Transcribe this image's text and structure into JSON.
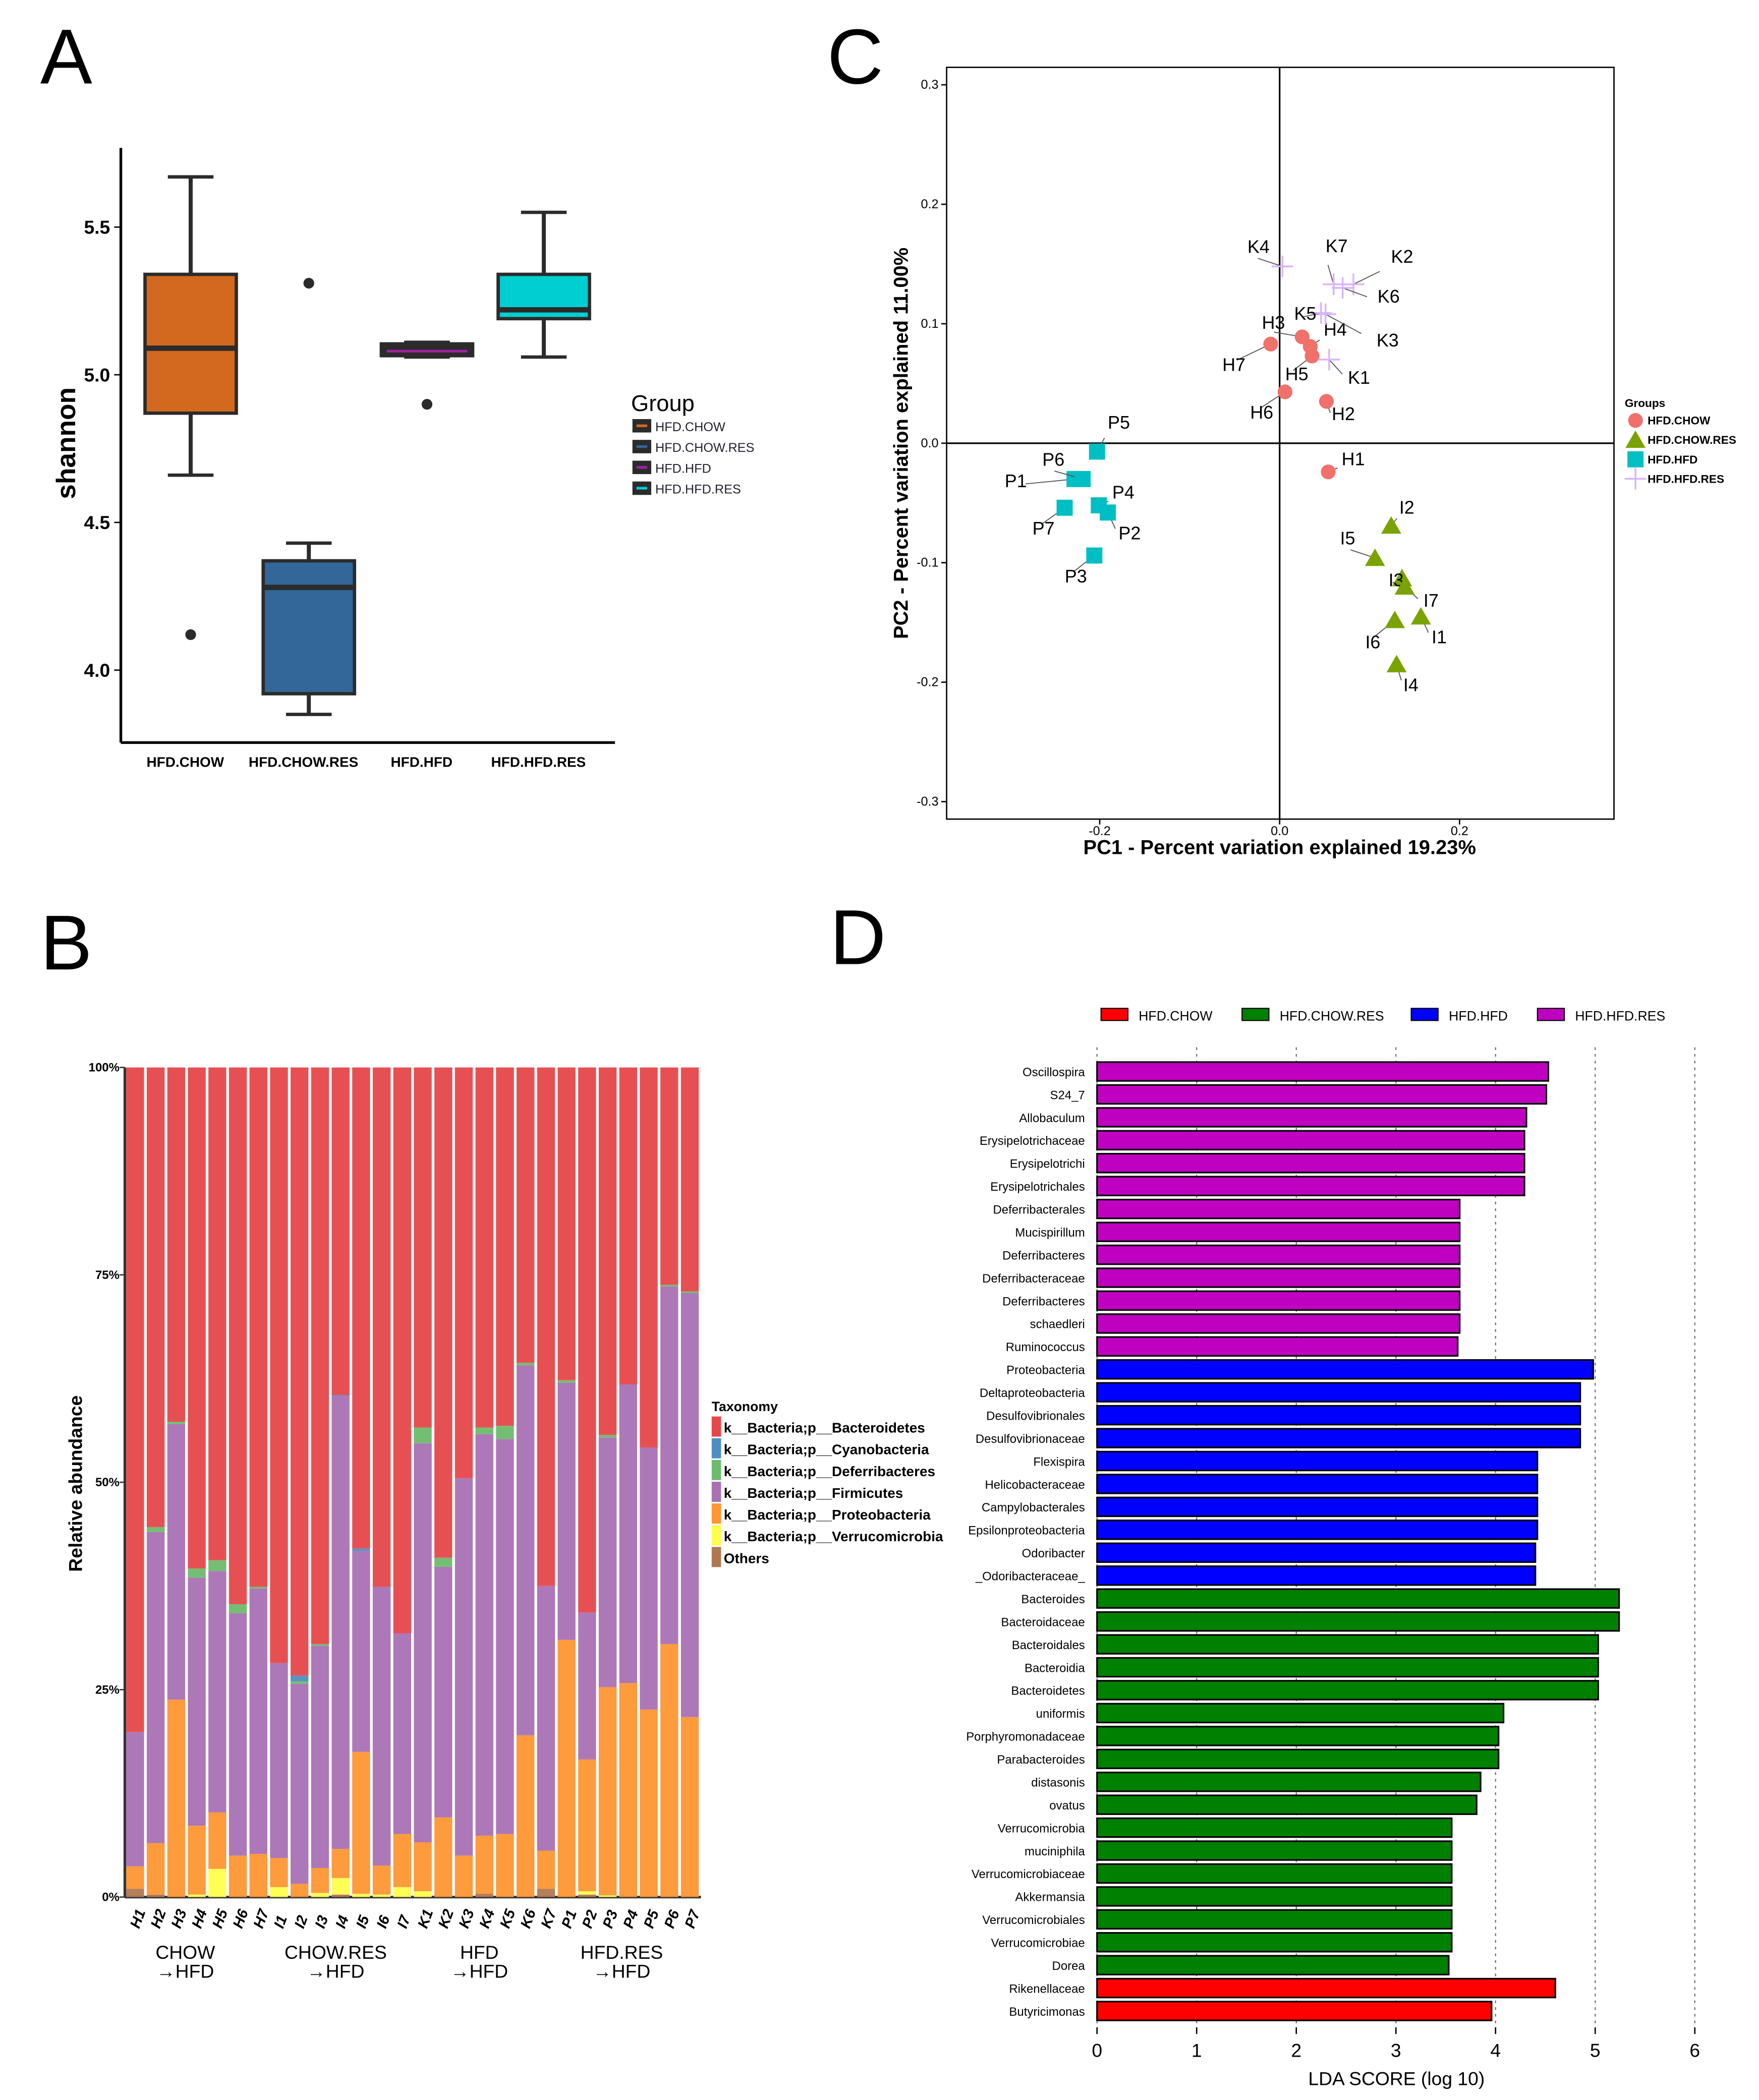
{
  "panel_letters": {
    "a": "A",
    "b": "B",
    "c": "C",
    "d": "D"
  },
  "chart_data": [
    {
      "panel": "A",
      "type": "box",
      "ylabel": "shannon",
      "xlabel": "",
      "ylim": [
        3.75,
        5.77
      ],
      "yticks": [
        "4.0",
        "4.5",
        "5.0",
        "5.5"
      ],
      "ytick_values": [
        4.0,
        4.5,
        5.0,
        5.5
      ],
      "legend_title": "Group",
      "legend_position": "right",
      "categories": [
        "HFD.CHOW",
        "HFD.CHOW.RES",
        "HFD.HFD",
        "HFD.HFD.RES"
      ],
      "colors": [
        "#d2691e",
        "#336699",
        "#2b2b2b",
        "#00ced1"
      ],
      "median_colors": [
        "#2b2b2b",
        "#2b2b2b",
        "#a020a0",
        "#2b2b2b"
      ],
      "boxes": [
        {
          "whisker_low": 4.66,
          "q1": 4.87,
          "median": 5.09,
          "q3": 5.34,
          "whisker_high": 5.67,
          "outliers": [
            4.12
          ]
        },
        {
          "whisker_low": 3.85,
          "q1": 3.92,
          "median": 4.28,
          "q3": 4.37,
          "whisker_high": 4.43,
          "outliers": [
            5.31
          ]
        },
        {
          "whisker_low": 5.06,
          "q1": 5.06,
          "median": 5.08,
          "q3": 5.1,
          "whisker_high": 5.11,
          "outliers": [
            4.9
          ]
        },
        {
          "whisker_low": 5.06,
          "q1": 5.19,
          "median": 5.22,
          "q3": 5.34,
          "whisker_high": 5.55,
          "outliers": []
        }
      ]
    },
    {
      "panel": "B",
      "type": "bar",
      "stacked": true,
      "ylabel": "Relative abundance",
      "yticks": [
        "0%",
        "25%",
        "50%",
        "75%",
        "100%"
      ],
      "ytick_values": [
        0,
        25,
        50,
        75,
        100
      ],
      "ylim": [
        0,
        100
      ],
      "legend_title": "Taxonomy",
      "legend_position": "right",
      "categories": [
        "H1",
        "H2",
        "H3",
        "H4",
        "H5",
        "H6",
        "H7",
        "I1",
        "I2",
        "I3",
        "I4",
        "I5",
        "I6",
        "I7",
        "K1",
        "K2",
        "K3",
        "K4",
        "K5",
        "K6",
        "K7",
        "P1",
        "P2",
        "P3",
        "P4",
        "P5",
        "P6",
        "P7"
      ],
      "group_labels": [
        {
          "line1": "CHOW",
          "line2": "→HFD"
        },
        {
          "line1": "CHOW.RES",
          "line2": "→HFD"
        },
        {
          "line1": "HFD",
          "line2": "→HFD"
        },
        {
          "line1": "HFD.RES",
          "line2": "→HFD"
        }
      ],
      "series": [
        {
          "name": "Others",
          "color": "#b07850",
          "values": [
            1,
            0.3,
            0,
            0,
            0,
            0,
            0,
            0,
            0,
            0,
            0.3,
            0,
            0,
            0,
            0,
            0,
            0,
            0.4,
            0,
            0,
            1,
            0,
            0.3,
            0,
            0,
            0,
            0,
            0
          ]
        },
        {
          "name": "k__Bacteria;p__Verrucomicrobia",
          "color": "#ffff4d",
          "values": [
            0,
            0,
            0,
            0.3,
            3.4,
            0,
            0,
            1.2,
            0,
            0.5,
            2.0,
            0.4,
            0.3,
            1.2,
            0.7,
            0,
            0,
            0,
            0,
            0,
            0,
            0,
            0.4,
            0.2,
            0,
            0,
            0,
            0
          ]
        },
        {
          "name": "k__Bacteria;p__Proteobacteria",
          "color": "#fd9633",
          "values": [
            2.7,
            6.2,
            23.8,
            8.3,
            6.8,
            5,
            5.2,
            3.5,
            1.6,
            3.0,
            3.5,
            17.1,
            3.5,
            6.4,
            5.9,
            9.6,
            5.0,
            7.0,
            7.6,
            19.5,
            4.6,
            31,
            15.9,
            25.1,
            25.8,
            22.6,
            30.5,
            21.7
          ]
        },
        {
          "name": "k__Bacteria;p__Firmicutes",
          "color": "#a971b3",
          "values": [
            16.2,
            37.5,
            33.2,
            29.9,
            29.1,
            29.2,
            32.0,
            23.5,
            24.1,
            26.8,
            54.6,
            24.2,
            33.6,
            24.2,
            48.1,
            30.2,
            45.5,
            48.4,
            47.6,
            44.6,
            31.9,
            31.0,
            17.7,
            30.1,
            36.0,
            31.6,
            43.1,
            51.1
          ]
        },
        {
          "name": "k__Bacteria;p__Deferribacteres",
          "color": "#6dbb6d",
          "values": [
            0,
            0.6,
            0.3,
            1.1,
            1.3,
            1.1,
            0.2,
            0,
            0.3,
            0.2,
            0,
            0,
            0,
            0,
            1.9,
            1.1,
            0,
            0.8,
            1.6,
            0.3,
            0,
            0.3,
            0,
            0.3,
            0,
            0,
            0.2,
            0.2
          ]
        },
        {
          "name": "k__Bacteria;p__Cyanobacteria",
          "color": "#4f8fc0",
          "values": [
            0,
            0,
            0,
            0,
            0,
            0,
            0,
            0,
            0.7,
            0,
            0.1,
            0.3,
            0,
            0,
            0,
            0,
            0,
            0,
            0,
            0,
            0,
            0,
            0,
            0,
            0,
            0,
            0,
            0
          ]
        },
        {
          "name": "k__Bacteria;p__Bacteroidetes",
          "color": "#e6474a",
          "values": [
            80.1,
            55.4,
            42.7,
            60.4,
            59.4,
            64.7,
            62.6,
            71.8,
            73.3,
            69.5,
            39.5,
            58.0,
            62.6,
            68.2,
            43.4,
            59.1,
            49.5,
            43.4,
            43.2,
            35.6,
            62.5,
            37.7,
            65.7,
            44.3,
            38.2,
            45.8,
            26.2,
            27.0
          ]
        }
      ],
      "legend_order": [
        "k__Bacteria;p__Bacteroidetes",
        "k__Bacteria;p__Cyanobacteria",
        "k__Bacteria;p__Deferribacteres",
        "k__Bacteria;p__Firmicutes",
        "k__Bacteria;p__Proteobacteria",
        "k__Bacteria;p__Verrucomicrobia",
        "Others"
      ]
    },
    {
      "panel": "C",
      "type": "scatter",
      "xlabel": "PC1 - Percent variation explained 19.23%",
      "ylabel": "PC2 - Percent variation explained 11.00%",
      "xlim": [
        -0.37,
        0.37
      ],
      "ylim": [
        -0.315,
        0.315
      ],
      "xticks": [
        "-0.2",
        "0.0",
        "0.2"
      ],
      "xtick_values": [
        -0.2,
        0,
        0.2
      ],
      "yticks": [
        "-0.3",
        "-0.2",
        "-0.1",
        "0.0",
        "0.1",
        "0.2",
        "0.3"
      ],
      "ytick_values": [
        -0.3,
        -0.2,
        -0.1,
        0,
        0.1,
        0.2,
        0.3
      ],
      "legend_title": "Groups",
      "legend_position": "right",
      "series": [
        {
          "name": "HFD.CHOW",
          "marker": "circle",
          "color": "#f0716b",
          "points": [
            {
              "label": "H1",
              "x": 0.054,
              "y": -0.024
            },
            {
              "label": "H2",
              "x": 0.052,
              "y": 0.035
            },
            {
              "label": "H3",
              "x": 0.025,
              "y": 0.089
            },
            {
              "label": "H4",
              "x": 0.034,
              "y": 0.081
            },
            {
              "label": "H5",
              "x": 0.036,
              "y": 0.073
            },
            {
              "label": "H6",
              "x": 0.006,
              "y": 0.043
            },
            {
              "label": "H7",
              "x": -0.01,
              "y": 0.083
            }
          ]
        },
        {
          "name": "HFD.CHOW.RES",
          "marker": "triangle",
          "color": "#7aa300",
          "points": [
            {
              "label": "I1",
              "x": 0.157,
              "y": -0.145
            },
            {
              "label": "I2",
              "x": 0.124,
              "y": -0.069
            },
            {
              "label": "I3",
              "x": 0.136,
              "y": -0.113
            },
            {
              "label": "I4",
              "x": 0.13,
              "y": -0.185
            },
            {
              "label": "I5",
              "x": 0.106,
              "y": -0.096
            },
            {
              "label": "I6",
              "x": 0.128,
              "y": -0.148
            },
            {
              "label": "I7",
              "x": 0.139,
              "y": -0.12
            }
          ]
        },
        {
          "name": "HFD.HFD",
          "marker": "square",
          "color": "#00bfc4",
          "points": [
            {
              "label": "P1",
              "x": -0.228,
              "y": -0.03
            },
            {
              "label": "P2",
              "x": -0.191,
              "y": -0.058
            },
            {
              "label": "P3",
              "x": -0.206,
              "y": -0.094
            },
            {
              "label": "P4",
              "x": -0.201,
              "y": -0.052
            },
            {
              "label": "P5",
              "x": -0.203,
              "y": -0.007
            },
            {
              "label": "P6",
              "x": -0.219,
              "y": -0.03
            },
            {
              "label": "P7",
              "x": -0.239,
              "y": -0.054
            }
          ]
        },
        {
          "name": "HFD.HFD.RES",
          "marker": "plus",
          "color": "#d9b3ff",
          "points": [
            {
              "label": "K1",
              "x": 0.055,
              "y": 0.07
            },
            {
              "label": "K2",
              "x": 0.082,
              "y": 0.133
            },
            {
              "label": "K3",
              "x": 0.051,
              "y": 0.108
            },
            {
              "label": "K4",
              "x": 0.003,
              "y": 0.148
            },
            {
              "label": "K5",
              "x": 0.046,
              "y": 0.109
            },
            {
              "label": "K6",
              "x": 0.07,
              "y": 0.13
            },
            {
              "label": "K7",
              "x": 0.06,
              "y": 0.133
            }
          ]
        }
      ]
    },
    {
      "panel": "D",
      "type": "bar",
      "orientation": "horizontal",
      "xlabel": "LDA SCORE (log 10)",
      "xlim": [
        0,
        6
      ],
      "xticks": [
        "0",
        "1",
        "2",
        "3",
        "4",
        "5",
        "6"
      ],
      "xtick_values": [
        0,
        1,
        2,
        3,
        4,
        5,
        6
      ],
      "legend_position": "top",
      "legend": [
        {
          "name": "HFD.CHOW",
          "color": "#ff0000"
        },
        {
          "name": "HFD.CHOW.RES",
          "color": "#008000"
        },
        {
          "name": "HFD.HFD",
          "color": "#0000ff"
        },
        {
          "name": "HFD.HFD.RES",
          "color": "#c000c0"
        }
      ],
      "bars": [
        {
          "label": "Oscillospira",
          "value": 4.53,
          "group": 3
        },
        {
          "label": "S24_7",
          "value": 4.51,
          "group": 3
        },
        {
          "label": "Allobaculum",
          "value": 4.31,
          "group": 3
        },
        {
          "label": "Erysipelotrichaceae",
          "value": 4.29,
          "group": 3
        },
        {
          "label": "Erysipelotrichi",
          "value": 4.29,
          "group": 3
        },
        {
          "label": "Erysipelotrichales",
          "value": 4.29,
          "group": 3
        },
        {
          "label": "Deferribacterales",
          "value": 3.64,
          "group": 3
        },
        {
          "label": "Mucispirillum",
          "value": 3.64,
          "group": 3
        },
        {
          "label": "Deferribacteres",
          "value": 3.64,
          "group": 3
        },
        {
          "label": "Deferribacteraceae",
          "value": 3.64,
          "group": 3
        },
        {
          "label": "Deferribacteres",
          "value": 3.64,
          "group": 3
        },
        {
          "label": "schaedleri",
          "value": 3.64,
          "group": 3
        },
        {
          "label": "Ruminococcus",
          "value": 3.62,
          "group": 3
        },
        {
          "label": "Proteobacteria",
          "value": 4.98,
          "group": 2
        },
        {
          "label": "Deltaproteobacteria",
          "value": 4.85,
          "group": 2
        },
        {
          "label": "Desulfovibrionales",
          "value": 4.85,
          "group": 2
        },
        {
          "label": "Desulfovibrionaceae",
          "value": 4.85,
          "group": 2
        },
        {
          "label": "Flexispira",
          "value": 4.42,
          "group": 2
        },
        {
          "label": "Helicobacteraceae",
          "value": 4.42,
          "group": 2
        },
        {
          "label": "Campylobacterales",
          "value": 4.42,
          "group": 2
        },
        {
          "label": "Epsilonproteobacteria",
          "value": 4.42,
          "group": 2
        },
        {
          "label": "Odoribacter",
          "value": 4.4,
          "group": 2
        },
        {
          "label": "_Odoribacteraceae_",
          "value": 4.4,
          "group": 2
        },
        {
          "label": "Bacteroides",
          "value": 5.24,
          "group": 1
        },
        {
          "label": "Bacteroidaceae",
          "value": 5.24,
          "group": 1
        },
        {
          "label": "Bacteroidales",
          "value": 5.03,
          "group": 1
        },
        {
          "label": "Bacteroidia",
          "value": 5.03,
          "group": 1
        },
        {
          "label": "Bacteroidetes",
          "value": 5.03,
          "group": 1
        },
        {
          "label": "uniformis",
          "value": 4.08,
          "group": 1
        },
        {
          "label": "Porphyromonadaceae",
          "value": 4.03,
          "group": 1
        },
        {
          "label": "Parabacteroides",
          "value": 4.03,
          "group": 1
        },
        {
          "label": "distasonis",
          "value": 3.85,
          "group": 1
        },
        {
          "label": "ovatus",
          "value": 3.81,
          "group": 1
        },
        {
          "label": "Verrucomicrobia",
          "value": 3.56,
          "group": 1
        },
        {
          "label": "muciniphila",
          "value": 3.56,
          "group": 1
        },
        {
          "label": "Verrucomicrobiaceae",
          "value": 3.56,
          "group": 1
        },
        {
          "label": "Akkermansia",
          "value": 3.56,
          "group": 1
        },
        {
          "label": "Verrucomicrobiales",
          "value": 3.56,
          "group": 1
        },
        {
          "label": "Verrucomicrobiae",
          "value": 3.56,
          "group": 1
        },
        {
          "label": "Dorea",
          "value": 3.53,
          "group": 1
        },
        {
          "label": "Rikenellaceae",
          "value": 4.6,
          "group": 0
        },
        {
          "label": "Butyricimonas",
          "value": 3.96,
          "group": 0
        }
      ]
    }
  ]
}
